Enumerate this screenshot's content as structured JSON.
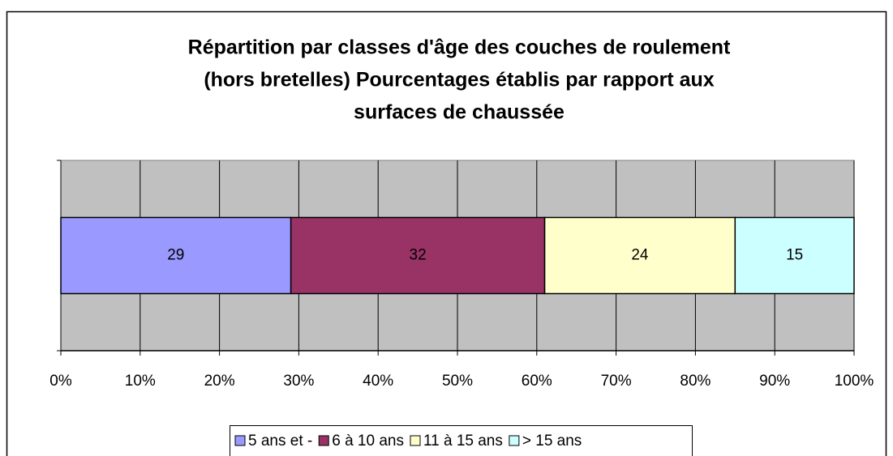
{
  "chart_data": {
    "type": "stacked-bar-horizontal",
    "title": [
      "Répartition par classes d'âge des couches de roulement",
      "(hors bretelles) Pourcentages établis par rapport aux",
      "surfaces de chaussée"
    ],
    "categories": [
      null
    ],
    "series": [
      {
        "name": "5 ans et -",
        "color": "#9999ff",
        "values": [
          29
        ]
      },
      {
        "name": "6 à 10 ans",
        "color": "#993366",
        "values": [
          32
        ]
      },
      {
        "name": "11 à 15 ans",
        "color": "#ffffcc",
        "values": [
          24
        ]
      },
      {
        "name": "> 15 ans",
        "color": "#ccffff",
        "values": [
          15
        ]
      }
    ],
    "xlim": [
      0,
      100
    ],
    "xticks": [
      {
        "value": 0,
        "label": "0%"
      },
      {
        "value": 10,
        "label": "10%"
      },
      {
        "value": 20,
        "label": "20%"
      },
      {
        "value": 30,
        "label": "30%"
      },
      {
        "value": 40,
        "label": "40%"
      },
      {
        "value": 50,
        "label": "50%"
      },
      {
        "value": 60,
        "label": "60%"
      },
      {
        "value": 70,
        "label": "70%"
      },
      {
        "value": 80,
        "label": "80%"
      },
      {
        "value": 90,
        "label": "90%"
      },
      {
        "value": 100,
        "label": "100%"
      }
    ],
    "grid": true,
    "plot_background": "#c0c0c0",
    "legend": "bottom"
  }
}
